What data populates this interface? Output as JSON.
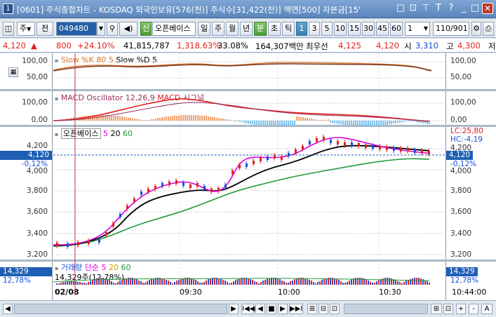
{
  "window": {
    "app_number": "1",
    "title": "[0601] 주식종합차트 - KOSDAQ 외국인보유[576(천)] 주식수[31,422(천)] 액면[500] 자본금[15'",
    "controls": [
      "□",
      "⊡",
      "T",
      "?",
      "✕"
    ]
  },
  "toolbar": {
    "period_select": "주",
    "prev_label": "전",
    "stock_code": "049480",
    "name_badge": "신",
    "stock_name": "오픈베이스",
    "period_buttons": [
      "일",
      "주",
      "월",
      "년",
      "분",
      "초",
      "틱"
    ],
    "active_period": "분",
    "interval_buttons": [
      "1",
      "3",
      "5",
      "10",
      "15",
      "30",
      "45",
      "60"
    ],
    "active_interval": "1",
    "count_select": "1",
    "page_counter": "110/901"
  },
  "quote": {
    "price": "4,120",
    "direction": "▲",
    "change": "800",
    "change_pct": "+24.10%",
    "volume": "41,815,787",
    "vol_ratio": "1,318.63%",
    "turnover": "33.08%",
    "amount": "164,307백만",
    "best_ask_label": "최우선",
    "best_ask": "4,125",
    "best_bid": "4,120",
    "open_label": "시",
    "open": "3,310",
    "high_label": "고",
    "high": "4,300",
    "low_label": "저"
  },
  "panes": {
    "stoch": {
      "label1": "Slow %K 80 5",
      "label2": "Slow %D 5",
      "yticks": [
        "100,00",
        "50,00"
      ]
    },
    "macd": {
      "label1": "MACD Oscillator 12,26,9",
      "label2": "MACD",
      "label3": "시그널",
      "yticks": [
        "100,00",
        "0,00"
      ]
    },
    "price": {
      "name": "오픈베이스",
      "ma1": "5",
      "ma2": "20",
      "ma3": "60",
      "yticks": [
        "4,200",
        "4,000",
        "3,800",
        "3,600",
        "3,400",
        "3,200"
      ],
      "right_yticks": [
        "4,200",
        "4,000",
        "3,800",
        "3,600",
        "3,400",
        "3,200"
      ],
      "lc": "LC:25,80",
      "hc": "HC:-4,19",
      "current_price": "4,120",
      "current_pct": "-0,12%"
    },
    "volume": {
      "label": "거래량",
      "ma_label": "단순",
      "ma1": "5",
      "ma2": "20",
      "ma3": "60",
      "value": "14,329",
      "pct": "12,78%",
      "detail": "14,329주(12,78%)"
    }
  },
  "xaxis": {
    "labels": [
      "02/08",
      "09:30",
      "10:00",
      "10:30"
    ],
    "current_time": "10:44:00"
  },
  "status_bar": {
    "nav_buttons": [
      "◀",
      "▶",
      "I◀◀",
      "◀",
      "■",
      "▶",
      "▶▶I",
      "⊞",
      "⊟",
      "⊡",
      "⊞",
      "⊡",
      "+",
      "-",
      "A"
    ]
  },
  "colors": {
    "rise": "#e02020",
    "fall": "#1a4fd8",
    "ma5": "#e000e0",
    "ma20": "#000000",
    "ma60": "#1f9a3a",
    "stoch_k": "#e07020",
    "macd": "#e02020",
    "signal": "#9a3060"
  }
}
